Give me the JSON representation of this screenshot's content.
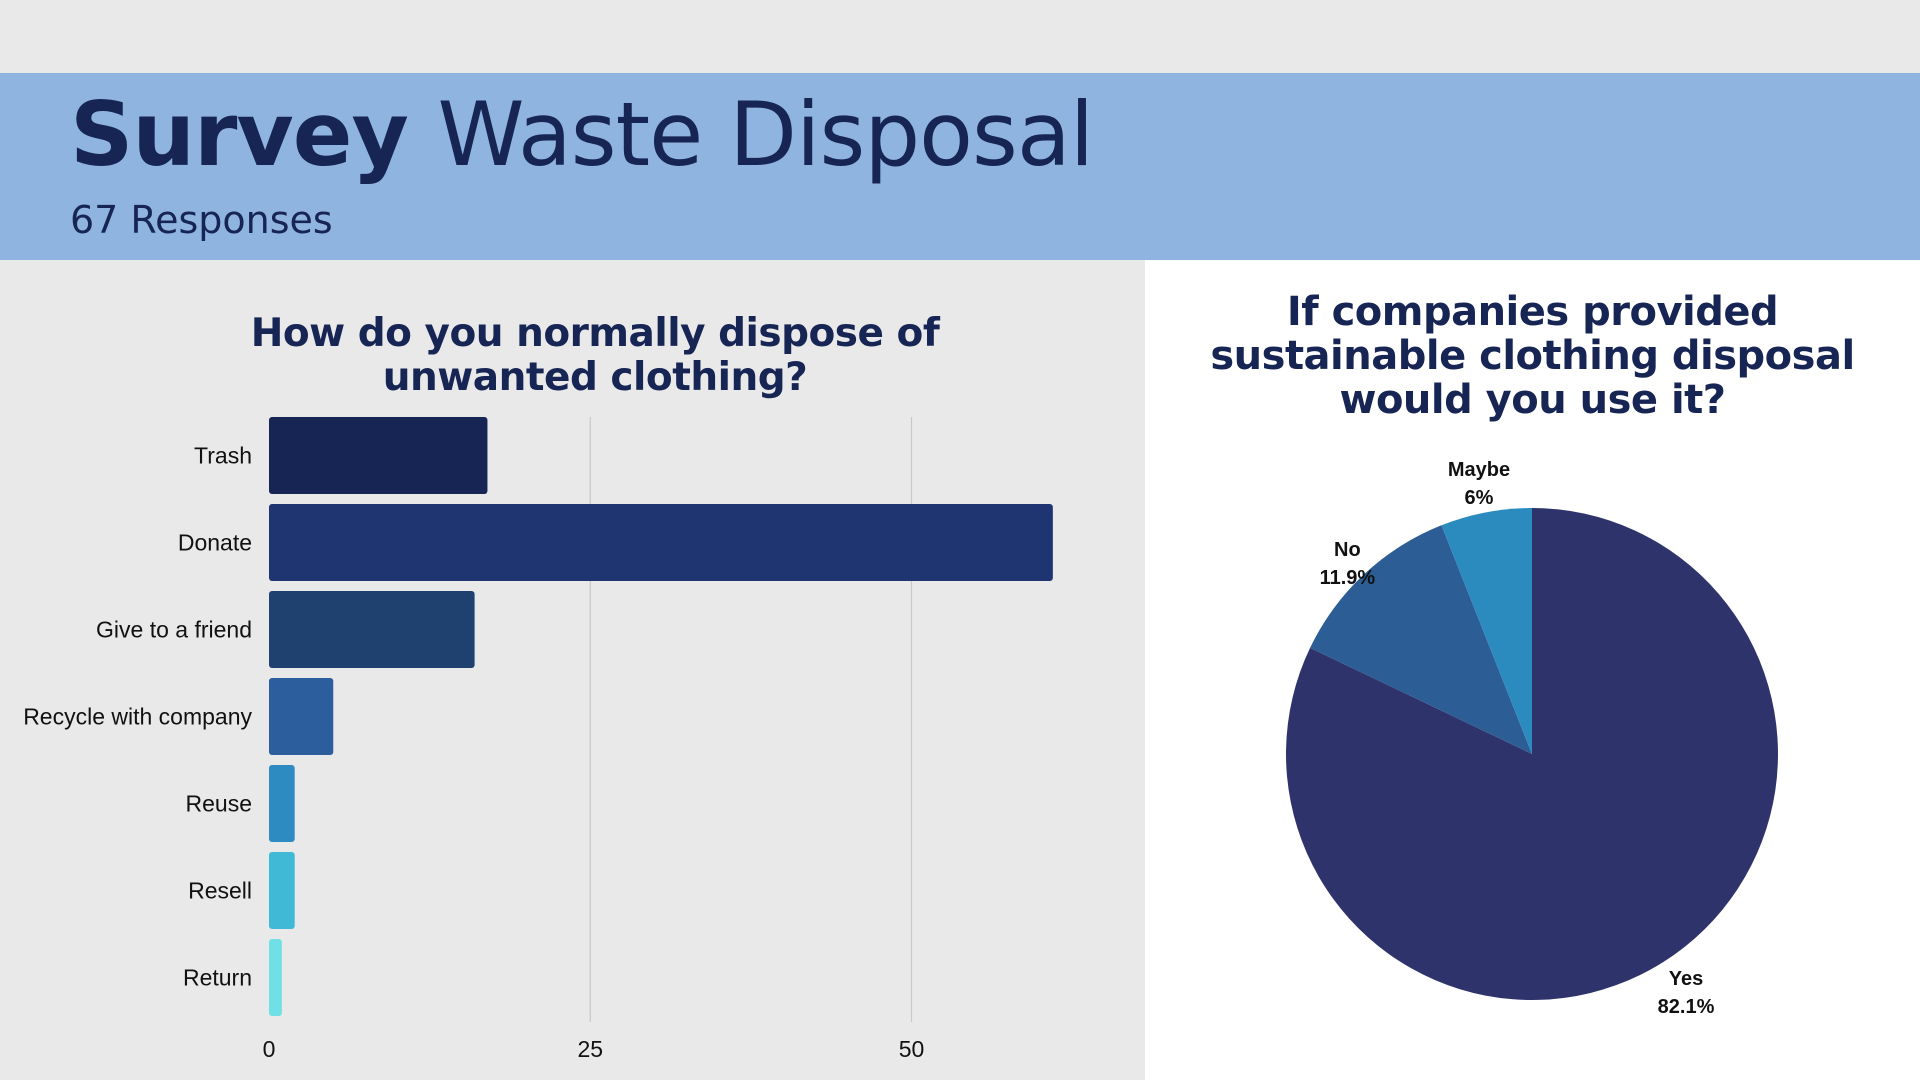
{
  "header": {
    "title_bold": "Survey",
    "title_rest": "Waste Disposal",
    "subtitle": "67 Responses"
  },
  "colors": {
    "banner": "#8fb4e0",
    "title_text": "#172554",
    "left_panel": "#e9e9e9",
    "right_panel": "#ffffff"
  },
  "chart_data": [
    {
      "type": "bar",
      "orientation": "horizontal",
      "title": "How do you normally dispose of unwanted clothing?",
      "categories": [
        "Trash",
        "Donate",
        "Give to a friend",
        "Recycle with company",
        "Reuse",
        "Resell",
        "Return"
      ],
      "values": [
        17,
        61,
        16,
        5,
        2,
        2,
        1
      ],
      "colors": [
        "#172554",
        "#1e3572",
        "#1f4170",
        "#2c5d9c",
        "#2d8bc2",
        "#40b9d6",
        "#6ee0e6"
      ],
      "xticks": [
        0,
        25,
        50
      ],
      "xlim": [
        0,
        65
      ],
      "grid": true,
      "legend": "none"
    },
    {
      "type": "pie",
      "title": "If companies provided sustainable clothing disposal would you use it?",
      "slices": [
        {
          "label": "Yes",
          "value": 82.1,
          "display": "82.1%",
          "color": "#2f336b"
        },
        {
          "label": "No",
          "value": 11.9,
          "display": "11.9%",
          "color": "#2c5d95"
        },
        {
          "label": "Maybe",
          "value": 6.0,
          "display": "6%",
          "color": "#2b8bbf"
        }
      ],
      "legend": "none"
    }
  ]
}
